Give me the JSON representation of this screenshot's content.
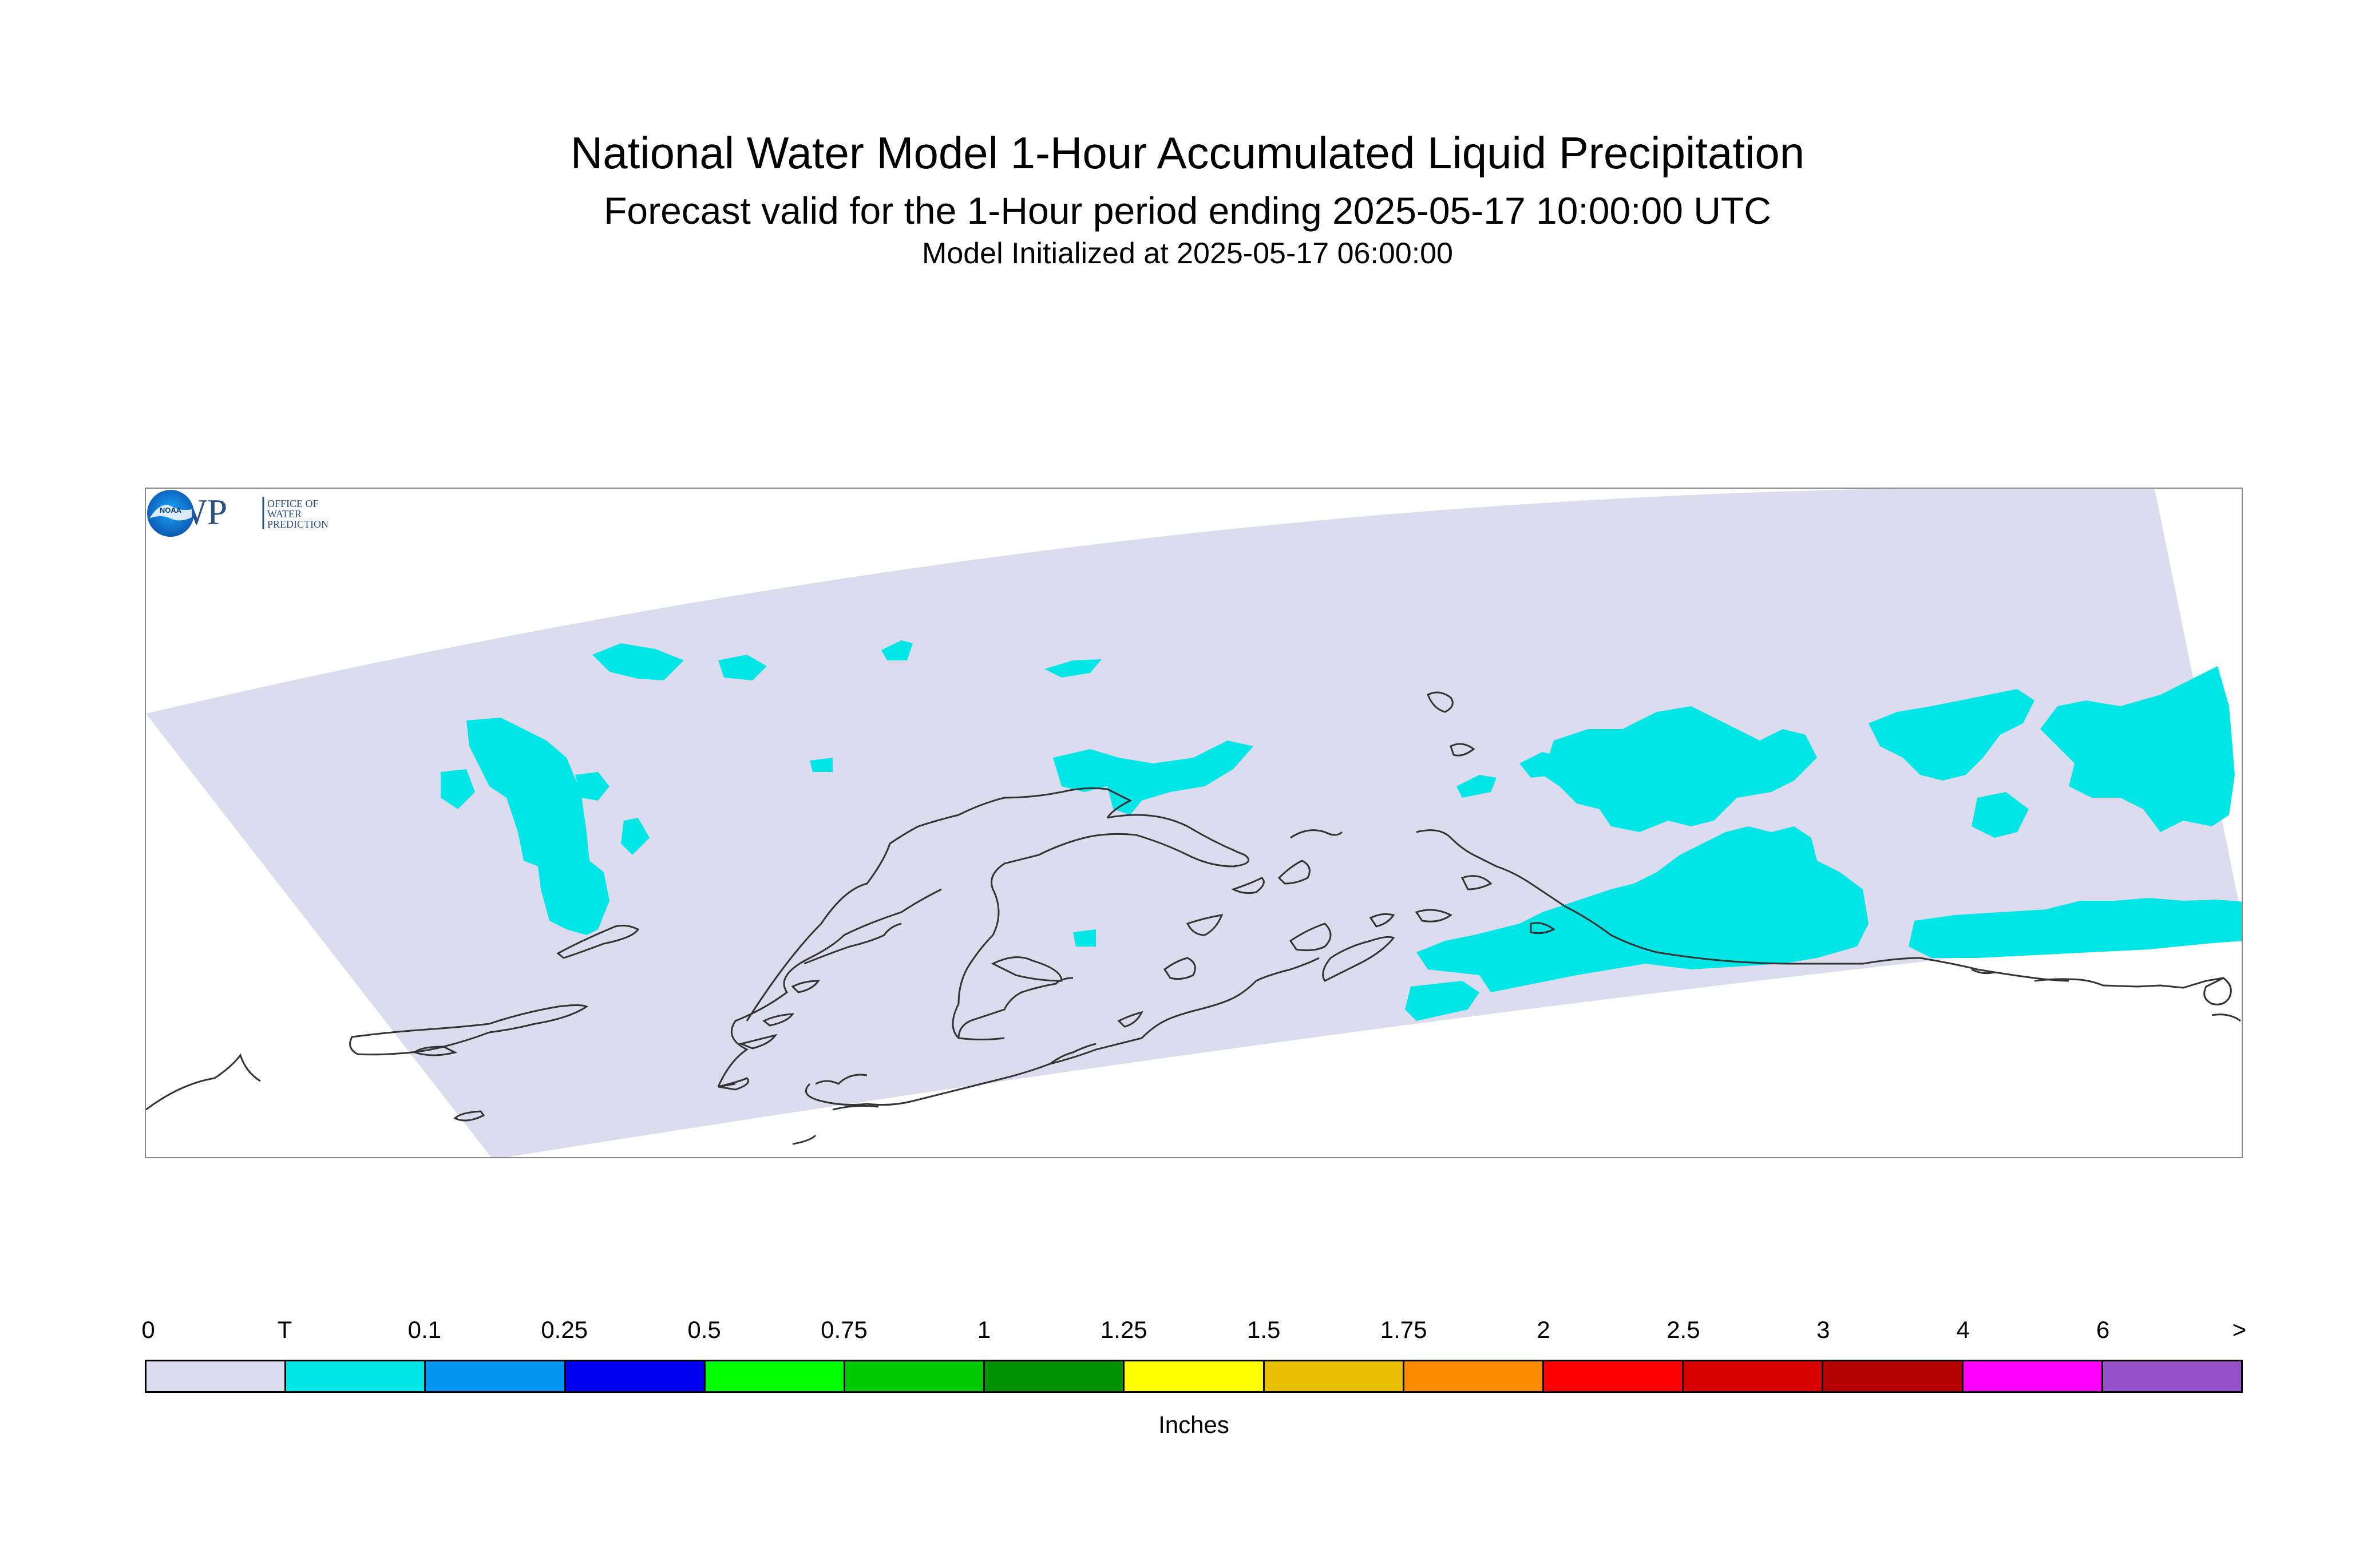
{
  "title": {
    "line1": "National Water Model 1-Hour Accumulated Liquid Precipitation",
    "line2": "Forecast valid for the 1-Hour period ending 2025-05-17 10:00:00 UTC",
    "line3": "Model Initialized at 2025-05-17 06:00:00"
  },
  "logos": {
    "owp_letters": "OWP",
    "owp_text": [
      "OFFICE OF",
      "WATER",
      "PREDICTION"
    ],
    "noaa_text": "NOAA"
  },
  "colors": {
    "domain_fill": "#dcdcee",
    "trace_fill": "#00e6e6",
    "coastline": "#333333",
    "owp_blue": "#2a4f86",
    "noaa_blue": "#0b7fd4"
  },
  "legend": {
    "units": "Inches",
    "ticks": [
      "0",
      "T",
      "0.1",
      "0.25",
      "0.5",
      "0.75",
      "1",
      "1.25",
      "1.5",
      "1.75",
      "2",
      "2.5",
      "3",
      "4",
      "6",
      ">"
    ],
    "colors": [
      "#dcdcee",
      "#00e6e6",
      "#0096f0",
      "#0000f0",
      "#00ff00",
      "#00c800",
      "#009100",
      "#ffff00",
      "#e6c000",
      "#ff8c00",
      "#ff0000",
      "#d70000",
      "#b40000",
      "#ff00ff",
      "#9650c8"
    ]
  }
}
